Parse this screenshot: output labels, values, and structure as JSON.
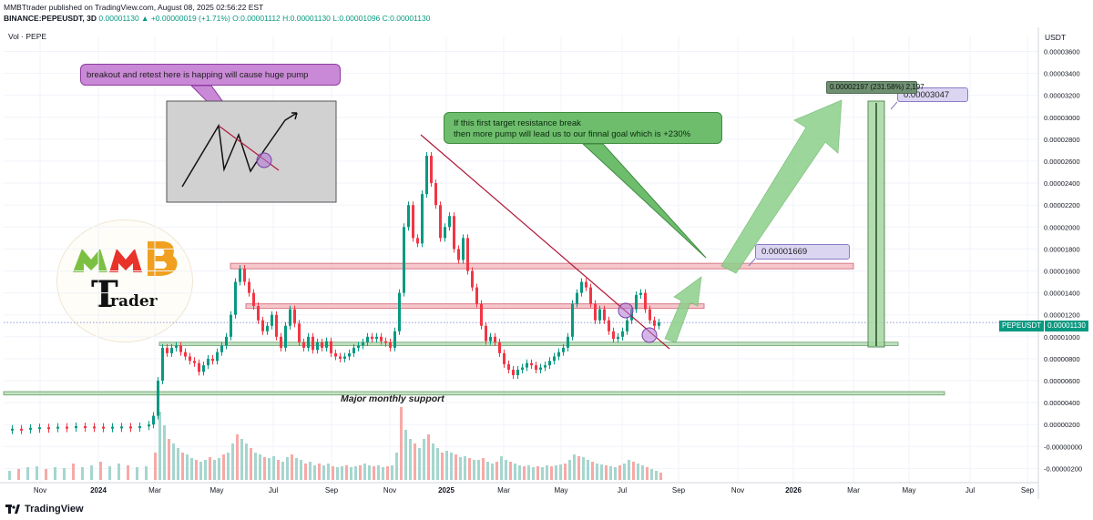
{
  "header": {
    "line1": "MMBTtrader published on TradingView.com, August 08, 2025 02:56:22 EST",
    "symbol": "BINANCE:PEPEUSDT, 3D",
    "change": "0.00001130 ▲ +0.00000019 (+1.71%)",
    "ohlc": "O:0.00001112 H:0.00001130 L:0.00001096 C:0.00001130"
  },
  "pane": {
    "vol_label": "Vol · PEPE",
    "unit": "USDT"
  },
  "annotations": {
    "breakout_note": "breakout and retest here is happing will cause huge pump",
    "target_note_line1": "If this first target resistance break",
    "target_note_line2": "then more pump will lead us to our finnal goal which is +230%",
    "target1": "0.00001669",
    "target2": "0.00003047",
    "measure": "0.00002197 (231.58%) 2,197",
    "support": "Major monthly support"
  },
  "price_tag": {
    "symbol": "PEPEUSDT",
    "price": "0.00001130"
  },
  "branding": {
    "footer": "TradingView",
    "logo_letters": "MMB",
    "logo_word": "rader",
    "logo_T": "T"
  },
  "colors": {
    "up": "#089981",
    "down": "#f23645",
    "resistance_zone": "#f4c2c6",
    "support_zone": "#b7dbb7",
    "arrow": "#8ccf8a",
    "trendline": "#b2173a"
  },
  "chart_data": {
    "type": "candlestick",
    "ylim": [
      -2e-06,
      3.6e-05
    ],
    "y_ticks": [
      "0.00003600",
      "0.00003400",
      "0.00003200",
      "0.00003000",
      "0.00002800",
      "0.00002600",
      "0.00002400",
      "0.00002200",
      "0.00002000",
      "0.00001800",
      "0.00001600",
      "0.00001400",
      "0.00001200",
      "0.00001000",
      "0.00000800",
      "0.00000600",
      "0.00000400",
      "0.00000200",
      "-0.00000000",
      "-0.00000200"
    ],
    "x_ticks": [
      "Nov",
      "2024",
      "Mar",
      "May",
      "Jul",
      "Sep",
      "Nov",
      "2025",
      "Mar",
      "May",
      "Jul",
      "Sep",
      "Nov",
      "2026",
      "Mar",
      "May",
      "Jul",
      "Sep"
    ],
    "levels": {
      "resistance_top": 1.669e-05,
      "resistance_mid": 1.3e-05,
      "support_zone": [
        9.2e-06,
        9.5e-06
      ],
      "monthly_support": [
        4.7e-06,
        5e-06
      ],
      "current": 1.13e-05,
      "goal": 3.047e-05
    },
    "price_path": [
      [
        0,
        1.6e-06
      ],
      [
        10,
        1.62e-06
      ],
      [
        20,
        1.6e-06
      ],
      [
        30,
        1.7e-06
      ],
      [
        40,
        1.75e-06
      ],
      [
        50,
        1.72e-06
      ],
      [
        60,
        1.8e-06
      ],
      [
        70,
        1.78e-06
      ],
      [
        80,
        1.85e-06
      ],
      [
        90,
        1.82e-06
      ],
      [
        100,
        1.8e-06
      ],
      [
        110,
        1.78e-06
      ],
      [
        120,
        1.8e-06
      ],
      [
        130,
        1.82e-06
      ],
      [
        140,
        1.81e-06
      ],
      [
        150,
        1.85e-06
      ],
      [
        160,
        2e-06
      ],
      [
        165,
        2.8e-06
      ],
      [
        170,
        6e-06
      ],
      [
        175,
        9e-06
      ],
      [
        180,
        8.5e-06
      ],
      [
        185,
        9e-06
      ],
      [
        190,
        9.2e-06
      ],
      [
        195,
        8.6e-06
      ],
      [
        200,
        8.2e-06
      ],
      [
        205,
        7.8e-06
      ],
      [
        210,
        7.6e-06
      ],
      [
        215,
        6.8e-06
      ],
      [
        220,
        7.4e-06
      ],
      [
        225,
        8e-06
      ],
      [
        230,
        7.8e-06
      ],
      [
        235,
        8.6e-06
      ],
      [
        240,
        9.2e-06
      ],
      [
        245,
        1e-05
      ],
      [
        250,
        1.2e-05
      ],
      [
        255,
        1.5e-05
      ],
      [
        260,
        1.62e-05
      ],
      [
        265,
        1.5e-05
      ],
      [
        270,
        1.4e-05
      ],
      [
        275,
        1.28e-05
      ],
      [
        280,
        1.15e-05
      ],
      [
        285,
        1.05e-05
      ],
      [
        290,
        1.1e-05
      ],
      [
        295,
        1.2e-05
      ],
      [
        300,
        1e-05
      ],
      [
        305,
        9e-06
      ],
      [
        310,
        1.1e-05
      ],
      [
        315,
        1.25e-05
      ],
      [
        320,
        1.12e-05
      ],
      [
        325,
        9.5e-06
      ],
      [
        330,
        9e-06
      ],
      [
        335,
        1e-05
      ],
      [
        340,
        8.8e-06
      ],
      [
        345,
        9.5e-06
      ],
      [
        350,
        9e-06
      ],
      [
        355,
        9.6e-06
      ],
      [
        360,
        8.5e-06
      ],
      [
        365,
        8.2e-06
      ],
      [
        370,
        8e-06
      ],
      [
        375,
        8.2e-06
      ],
      [
        380,
        8.5e-06
      ],
      [
        385,
        9e-06
      ],
      [
        390,
        9.2e-06
      ],
      [
        395,
        9.5e-06
      ],
      [
        400,
        1e-05
      ],
      [
        405,
        9.8e-06
      ],
      [
        410,
        1e-05
      ],
      [
        415,
        9.6e-06
      ],
      [
        420,
        9.5e-06
      ],
      [
        425,
        9e-06
      ],
      [
        430,
        1.05e-05
      ],
      [
        435,
        1.4e-05
      ],
      [
        440,
        2e-05
      ],
      [
        445,
        2.2e-05
      ],
      [
        450,
        1.9e-05
      ],
      [
        455,
        1.85e-05
      ],
      [
        460,
        2.3e-05
      ],
      [
        465,
        2.65e-05
      ],
      [
        470,
        2.4e-05
      ],
      [
        475,
        2.2e-05
      ],
      [
        480,
        1.9e-05
      ],
      [
        485,
        2e-05
      ],
      [
        490,
        2.1e-05
      ],
      [
        495,
        1.8e-05
      ],
      [
        500,
        1.7e-05
      ],
      [
        505,
        1.9e-05
      ],
      [
        510,
        1.6e-05
      ],
      [
        515,
        1.45e-05
      ],
      [
        520,
        1.3e-05
      ],
      [
        525,
        1.1e-05
      ],
      [
        530,
        9.6e-06
      ],
      [
        535,
        1e-05
      ],
      [
        540,
        9.5e-06
      ],
      [
        545,
        8.5e-06
      ],
      [
        550,
        7.5e-06
      ],
      [
        555,
        7e-06
      ],
      [
        560,
        6.5e-06
      ],
      [
        565,
        7e-06
      ],
      [
        570,
        7.2e-06
      ],
      [
        575,
        7.6e-06
      ],
      [
        580,
        7.4e-06
      ],
      [
        585,
        7e-06
      ],
      [
        590,
        7.2e-06
      ],
      [
        595,
        7.4e-06
      ],
      [
        600,
        7.8e-06
      ],
      [
        605,
        8.2e-06
      ],
      [
        610,
        8.6e-06
      ],
      [
        615,
        9e-06
      ],
      [
        620,
        1e-05
      ],
      [
        625,
        1.3e-05
      ],
      [
        630,
        1.4e-05
      ],
      [
        635,
        1.5e-05
      ],
      [
        640,
        1.45e-05
      ],
      [
        645,
        1.3e-05
      ],
      [
        650,
        1.15e-05
      ],
      [
        655,
        1.25e-05
      ],
      [
        660,
        1.15e-05
      ],
      [
        665,
        1.05e-05
      ],
      [
        670,
        9.8e-06
      ],
      [
        675,
        1e-05
      ],
      [
        680,
        1.05e-05
      ],
      [
        685,
        1.15e-05
      ],
      [
        690,
        1.25e-05
      ],
      [
        695,
        1.38e-05
      ],
      [
        700,
        1.4e-05
      ],
      [
        705,
        1.25e-05
      ],
      [
        710,
        1.15e-05
      ],
      [
        715,
        1.1e-05
      ],
      [
        720,
        1.13e-05
      ]
    ],
    "volume_path": [
      [
        5,
        10
      ],
      [
        15,
        12
      ],
      [
        25,
        14
      ],
      [
        35,
        15
      ],
      [
        45,
        12
      ],
      [
        55,
        14
      ],
      [
        65,
        13
      ],
      [
        75,
        18
      ],
      [
        85,
        14
      ],
      [
        95,
        16
      ],
      [
        105,
        20
      ],
      [
        115,
        15
      ],
      [
        125,
        18
      ],
      [
        135,
        16
      ],
      [
        145,
        14
      ],
      [
        155,
        15
      ],
      [
        165,
        30
      ],
      [
        170,
        75
      ],
      [
        175,
        60
      ],
      [
        180,
        45
      ],
      [
        185,
        40
      ],
      [
        190,
        35
      ],
      [
        195,
        30
      ],
      [
        200,
        28
      ],
      [
        205,
        24
      ],
      [
        210,
        22
      ],
      [
        215,
        20
      ],
      [
        220,
        22
      ],
      [
        225,
        25
      ],
      [
        230,
        22
      ],
      [
        235,
        24
      ],
      [
        240,
        28
      ],
      [
        245,
        30
      ],
      [
        250,
        40
      ],
      [
        255,
        50
      ],
      [
        260,
        45
      ],
      [
        265,
        40
      ],
      [
        270,
        35
      ],
      [
        275,
        30
      ],
      [
        280,
        28
      ],
      [
        285,
        25
      ],
      [
        290,
        24
      ],
      [
        295,
        26
      ],
      [
        300,
        22
      ],
      [
        305,
        20
      ],
      [
        310,
        25
      ],
      [
        315,
        28
      ],
      [
        320,
        24
      ],
      [
        325,
        22
      ],
      [
        330,
        18
      ],
      [
        335,
        20
      ],
      [
        340,
        16
      ],
      [
        345,
        18
      ],
      [
        350,
        16
      ],
      [
        355,
        18
      ],
      [
        360,
        15
      ],
      [
        365,
        14
      ],
      [
        370,
        15
      ],
      [
        375,
        16
      ],
      [
        380,
        14
      ],
      [
        385,
        15
      ],
      [
        390,
        16
      ],
      [
        395,
        18
      ],
      [
        400,
        16
      ],
      [
        405,
        15
      ],
      [
        410,
        16
      ],
      [
        415,
        14
      ],
      [
        420,
        15
      ],
      [
        425,
        16
      ],
      [
        430,
        30
      ],
      [
        435,
        80
      ],
      [
        440,
        55
      ],
      [
        445,
        45
      ],
      [
        450,
        40
      ],
      [
        455,
        35
      ],
      [
        460,
        45
      ],
      [
        465,
        50
      ],
      [
        470,
        40
      ],
      [
        475,
        35
      ],
      [
        480,
        30
      ],
      [
        485,
        32
      ],
      [
        490,
        30
      ],
      [
        495,
        28
      ],
      [
        500,
        25
      ],
      [
        505,
        26
      ],
      [
        510,
        24
      ],
      [
        515,
        22
      ],
      [
        520,
        22
      ],
      [
        525,
        24
      ],
      [
        530,
        20
      ],
      [
        535,
        18
      ],
      [
        540,
        20
      ],
      [
        545,
        26
      ],
      [
        550,
        22
      ],
      [
        555,
        20
      ],
      [
        560,
        18
      ],
      [
        565,
        16
      ],
      [
        570,
        15
      ],
      [
        575,
        16
      ],
      [
        580,
        14
      ],
      [
        585,
        15
      ],
      [
        590,
        14
      ],
      [
        595,
        16
      ],
      [
        600,
        15
      ],
      [
        605,
        16
      ],
      [
        610,
        17
      ],
      [
        615,
        18
      ],
      [
        620,
        22
      ],
      [
        625,
        28
      ],
      [
        630,
        26
      ],
      [
        635,
        25
      ],
      [
        640,
        22
      ],
      [
        645,
        20
      ],
      [
        650,
        18
      ],
      [
        655,
        17
      ],
      [
        660,
        16
      ],
      [
        665,
        15
      ],
      [
        670,
        14
      ],
      [
        675,
        16
      ],
      [
        680,
        18
      ],
      [
        685,
        22
      ],
      [
        690,
        20
      ],
      [
        695,
        18
      ],
      [
        700,
        16
      ],
      [
        705,
        14
      ],
      [
        710,
        12
      ],
      [
        715,
        10
      ],
      [
        720,
        8
      ]
    ]
  }
}
